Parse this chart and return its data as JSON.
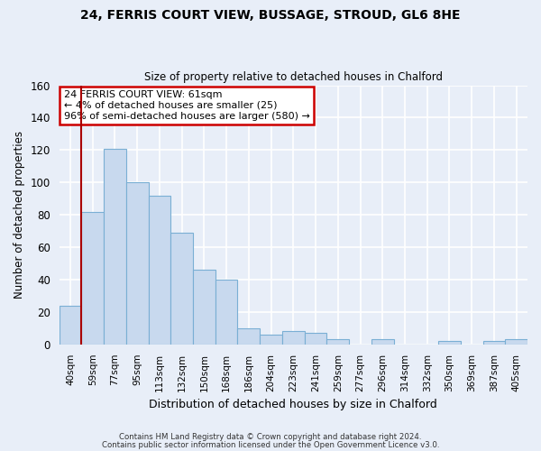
{
  "title1": "24, FERRIS COURT VIEW, BUSSAGE, STROUD, GL6 8HE",
  "title2": "Size of property relative to detached houses in Chalford",
  "xlabel": "Distribution of detached houses by size in Chalford",
  "ylabel": "Number of detached properties",
  "bar_labels": [
    "40sqm",
    "59sqm",
    "77sqm",
    "95sqm",
    "113sqm",
    "132sqm",
    "150sqm",
    "168sqm",
    "186sqm",
    "204sqm",
    "223sqm",
    "241sqm",
    "259sqm",
    "277sqm",
    "296sqm",
    "314sqm",
    "332sqm",
    "350sqm",
    "369sqm",
    "387sqm",
    "405sqm"
  ],
  "bar_values": [
    24,
    82,
    121,
    100,
    92,
    69,
    46,
    40,
    10,
    6,
    8,
    7,
    3,
    0,
    3,
    0,
    0,
    2,
    0,
    2,
    3
  ],
  "bar_color": "#c8d9ee",
  "bar_edge_color": "#7aafd4",
  "vline_color": "#aa0000",
  "annotation_title": "24 FERRIS COURT VIEW: 61sqm",
  "annotation_line1": "← 4% of detached houses are smaller (25)",
  "annotation_line2": "96% of semi-detached houses are larger (580) →",
  "ylim": [
    0,
    160
  ],
  "yticks": [
    0,
    20,
    40,
    60,
    80,
    100,
    120,
    140,
    160
  ],
  "footer1": "Contains HM Land Registry data © Crown copyright and database right 2024.",
  "footer2": "Contains public sector information licensed under the Open Government Licence v3.0.",
  "bg_color": "#e8eef8",
  "fig_bg_color": "#e8eef8"
}
